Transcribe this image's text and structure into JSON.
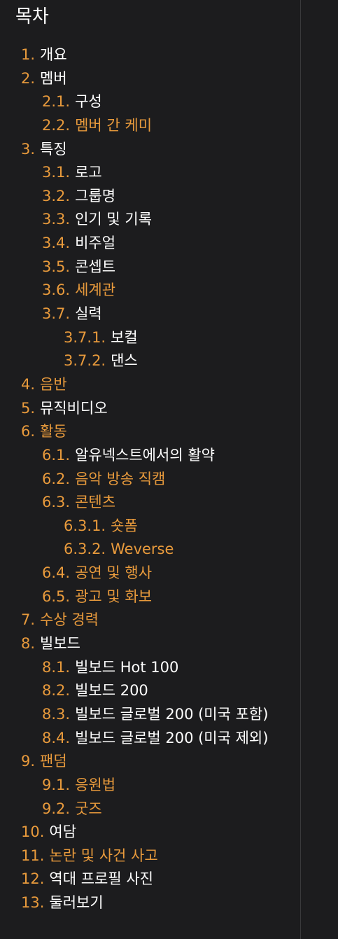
{
  "toc": {
    "heading": "목차",
    "colors": {
      "number": "#e89a3c",
      "text": "#ffffff",
      "link": "#e89a3c",
      "background": "#1c1c1e"
    },
    "items": [
      {
        "num": "1.",
        "label": "개요",
        "level": 1,
        "link": false
      },
      {
        "num": "2.",
        "label": "멤버",
        "level": 1,
        "link": false
      },
      {
        "num": "2.1.",
        "label": "구성",
        "level": 2,
        "link": false
      },
      {
        "num": "2.2.",
        "label": "멤버 간 케미",
        "level": 2,
        "link": true
      },
      {
        "num": "3.",
        "label": "특징",
        "level": 1,
        "link": false
      },
      {
        "num": "3.1.",
        "label": "로고",
        "level": 2,
        "link": false
      },
      {
        "num": "3.2.",
        "label": "그룹명",
        "level": 2,
        "link": false
      },
      {
        "num": "3.3.",
        "label": "인기 및 기록",
        "level": 2,
        "link": false
      },
      {
        "num": "3.4.",
        "label": "비주얼",
        "level": 2,
        "link": false
      },
      {
        "num": "3.5.",
        "label": "콘셉트",
        "level": 2,
        "link": false
      },
      {
        "num": "3.6.",
        "label": "세계관",
        "level": 2,
        "link": true
      },
      {
        "num": "3.7.",
        "label": "실력",
        "level": 2,
        "link": false
      },
      {
        "num": "3.7.1.",
        "label": "보컬",
        "level": 3,
        "link": false
      },
      {
        "num": "3.7.2.",
        "label": "댄스",
        "level": 3,
        "link": false
      },
      {
        "num": "4.",
        "label": "음반",
        "level": 1,
        "link": true
      },
      {
        "num": "5.",
        "label": "뮤직비디오",
        "level": 1,
        "link": false
      },
      {
        "num": "6.",
        "label": "활동",
        "level": 1,
        "link": true
      },
      {
        "num": "6.1.",
        "label": "알유넥스트에서의 활약",
        "level": 2,
        "link": false
      },
      {
        "num": "6.2.",
        "label": "음악 방송 직캠",
        "level": 2,
        "link": true
      },
      {
        "num": "6.3.",
        "label": "콘텐츠",
        "level": 2,
        "link": true
      },
      {
        "num": "6.3.1.",
        "label": "숏폼",
        "level": 3,
        "link": true
      },
      {
        "num": "6.3.2.",
        "label": "Weverse",
        "level": 3,
        "link": true
      },
      {
        "num": "6.4.",
        "label": "공연 및 행사",
        "level": 2,
        "link": true
      },
      {
        "num": "6.5.",
        "label": "광고 및 화보",
        "level": 2,
        "link": true
      },
      {
        "num": "7.",
        "label": "수상 경력",
        "level": 1,
        "link": true
      },
      {
        "num": "8.",
        "label": "빌보드",
        "level": 1,
        "link": false
      },
      {
        "num": "8.1.",
        "label": "빌보드 Hot 100",
        "level": 2,
        "link": false
      },
      {
        "num": "8.2.",
        "label": "빌보드 200",
        "level": 2,
        "link": false
      },
      {
        "num": "8.3.",
        "label": "빌보드 글로벌 200 (미국 포함)",
        "level": 2,
        "link": false
      },
      {
        "num": "8.4.",
        "label": "빌보드 글로벌 200 (미국 제외)",
        "level": 2,
        "link": false
      },
      {
        "num": "9.",
        "label": "팬덤",
        "level": 1,
        "link": true
      },
      {
        "num": "9.1.",
        "label": "응원법",
        "level": 2,
        "link": true
      },
      {
        "num": "9.2.",
        "label": "굿즈",
        "level": 2,
        "link": true
      },
      {
        "num": "10.",
        "label": "여담",
        "level": 1,
        "link": false
      },
      {
        "num": "11.",
        "label": "논란 및 사건 사고",
        "level": 1,
        "link": true
      },
      {
        "num": "12.",
        "label": "역대 프로필 사진",
        "level": 1,
        "link": false
      },
      {
        "num": "13.",
        "label": "둘러보기",
        "level": 1,
        "link": false
      }
    ]
  }
}
